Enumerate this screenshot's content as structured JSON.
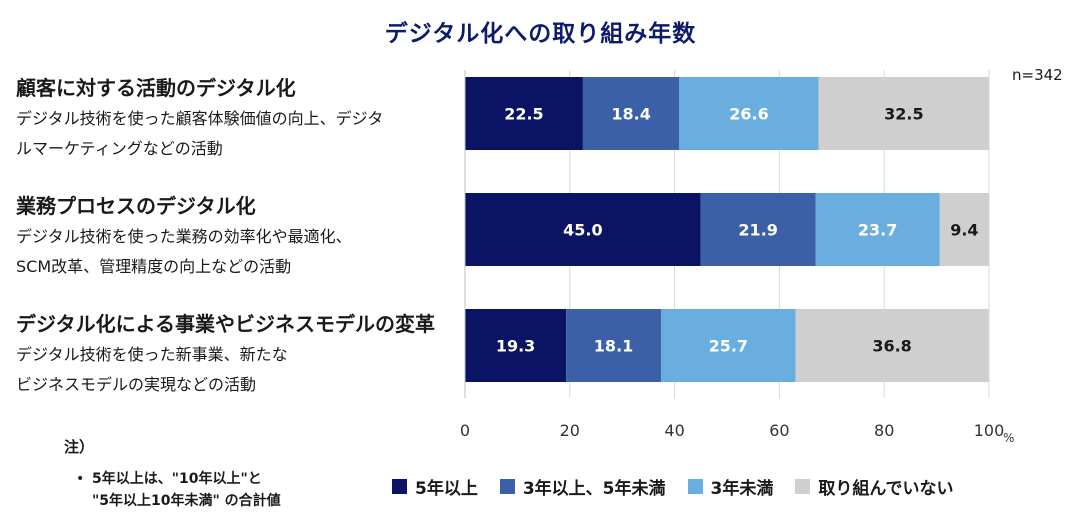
{
  "title": "デジタル化への取り組み年数",
  "n_label": "n=342",
  "categories": [
    {
      "title": "顧客に対する活動のデジタル化",
      "desc1": "デジタル技術を使った顧客体験価値の向上、デジタ",
      "desc2": "ルマーケティングなどの活動"
    },
    {
      "title": "業務プロセスのデジタル化",
      "desc1": "デジタル技術を使った業務の効率化や最適化、",
      "desc2": "SCM改革、管理精度の向上などの活動"
    },
    {
      "title": "デジタル化による事業やビジネスモデルの変革",
      "desc1": "デジタル技術を使った新事業、新たな",
      "desc2": "ビジネスモデルの実現などの活動"
    }
  ],
  "note": {
    "heading": "注）",
    "bullet": "•",
    "line1": "5年以上は、\"10年以上\"と",
    "line2": "\"5年以上10年未満\" の合計値"
  },
  "chart_data": {
    "type": "bar",
    "orientation": "horizontal",
    "stacked": true,
    "title": "デジタル化への取り組み年数",
    "categories": [
      "顧客に対する活動のデジタル化",
      "業務プロセスのデジタル化",
      "デジタル化による事業やビジネスモデルの変革"
    ],
    "series": [
      {
        "name": "5年以上",
        "color": "#0b1464",
        "label_color": "#ffffff",
        "values": [
          22.5,
          45.0,
          19.3
        ]
      },
      {
        "name": "3年以上、5年未満",
        "color": "#3c60a8",
        "label_color": "#ffffff",
        "values": [
          18.4,
          21.9,
          18.1
        ]
      },
      {
        "name": "3年未満",
        "color": "#6aaee0",
        "label_color": "#ffffff",
        "values": [
          26.6,
          23.7,
          25.7
        ]
      },
      {
        "name": "取り組んでいない",
        "color": "#cfcfcf",
        "label_color": "#1a1a1a",
        "values": [
          32.5,
          9.4,
          36.8
        ]
      }
    ],
    "xlim": [
      0,
      100
    ],
    "xticks": [
      "0",
      "20",
      "40",
      "60",
      "80",
      "100"
    ],
    "xunit": "%",
    "grid": true,
    "legend_position": "bottom"
  }
}
